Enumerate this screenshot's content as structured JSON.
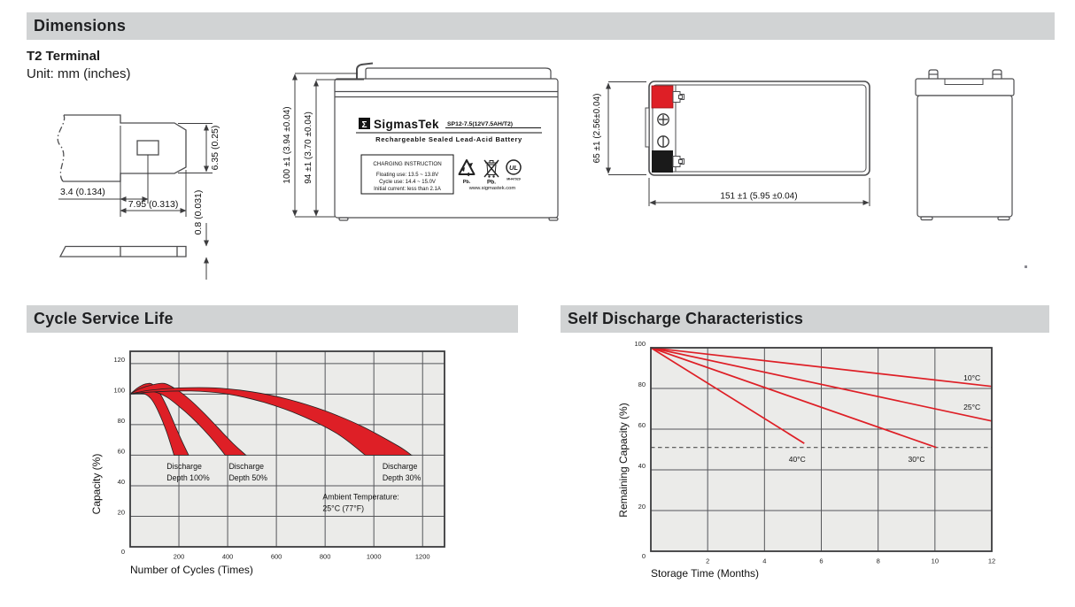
{
  "header": {
    "dimensions_title": "Dimensions",
    "terminal_type": "T2 Terminal",
    "unit_note": "Unit: mm (inches)"
  },
  "section_titles": {
    "cycle": "Cycle Service Life",
    "self_discharge": "Self Discharge Characteristics"
  },
  "terminal_drawing": {
    "dim_offset": "3.4 (0.134)",
    "dim_length": "7.95 (0.313)",
    "dim_height": "6.35 (0.25)",
    "dim_thickness": "0.8 (0.031)"
  },
  "front_view": {
    "dim_total_height": "100 ±1 (3.94 ±0.04)",
    "dim_case_height": "94 ±1 (3.70 ±0.04)",
    "logo_sigma": "Σ",
    "brand": "SigmasTek",
    "model": "SP12-7.5(12V7.5AH/T2)",
    "subtitle": "Rechargeable Sealed Lead-Acid Battery",
    "charging": {
      "title": "CHARGING INSTRUCTION",
      "floating": "Floating use: 13.5 ~ 13.8V",
      "cycle": "Cycle use: 14.4 ~ 15.0V",
      "initial": "Initial current: less than 2.1A"
    },
    "pb_recycle": "Pb.",
    "pb_bin": "Pb.",
    "ul_text": "UL",
    "ul_code": "MH47929",
    "website": "www.sigmastek.com"
  },
  "top_view": {
    "dim_height": "65 ±1 (2.56±0.04)",
    "dim_length": "151 ±1 (5.95 ±0.04)"
  },
  "colors": {
    "accent_red": "#de1f26",
    "terminal_black": "#1a1a1a",
    "header_bar": "#d1d3d4",
    "plot_bg": "#ebebe9",
    "grid": "#55565a",
    "border": "#3a3b3d",
    "line_art": "#4d4d4f"
  },
  "chart_data": [
    {
      "type": "area",
      "title": "Cycle Service Life",
      "xlabel": "Number of Cycles (Times)",
      "ylabel": "Capacity (%)",
      "xlim": [
        0,
        1290
      ],
      "ylim": [
        0,
        128
      ],
      "xticks": [
        200,
        400,
        600,
        800,
        1000,
        1200
      ],
      "yticks": [
        0,
        20,
        40,
        60,
        80,
        100,
        120
      ],
      "grid": true,
      "legend_position": "none",
      "bands": [
        {
          "name": "Discharge Depth 100%",
          "upper": [
            [
              0,
              100
            ],
            [
              30,
              104
            ],
            [
              60,
              106.5
            ],
            [
              90,
              106.5
            ],
            [
              120,
              101
            ],
            [
              150,
              92
            ],
            [
              180,
              81
            ],
            [
              210,
              70
            ],
            [
              240,
              60
            ]
          ],
          "lower": [
            [
              0,
              100
            ],
            [
              30,
              100.5
            ],
            [
              60,
              100
            ],
            [
              90,
              96
            ],
            [
              120,
              87
            ],
            [
              150,
              75
            ],
            [
              180,
              60
            ]
          ]
        },
        {
          "name": "Discharge Depth 50%",
          "upper": [
            [
              0,
              100
            ],
            [
              40,
              103.5
            ],
            [
              90,
              106
            ],
            [
              140,
              107
            ],
            [
              190,
              103
            ],
            [
              240,
              97
            ],
            [
              300,
              88
            ],
            [
              360,
              78
            ],
            [
              420,
              68
            ],
            [
              475,
              60
            ]
          ],
          "lower": [
            [
              0,
              100
            ],
            [
              50,
              101.5
            ],
            [
              100,
              101.5
            ],
            [
              150,
              98
            ],
            [
              200,
              92
            ],
            [
              250,
              85
            ],
            [
              300,
              77
            ],
            [
              350,
              68
            ],
            [
              390,
              60
            ]
          ]
        },
        {
          "name": "Discharge Depth 30%",
          "upper": [
            [
              0,
              100
            ],
            [
              80,
              102.5
            ],
            [
              200,
              104
            ],
            [
              350,
              104
            ],
            [
              500,
              101.5
            ],
            [
              650,
              96.5
            ],
            [
              800,
              89
            ],
            [
              950,
              79
            ],
            [
              1100,
              66
            ],
            [
              1155,
              60
            ]
          ],
          "lower": [
            [
              0,
              100
            ],
            [
              100,
              101.5
            ],
            [
              250,
              102
            ],
            [
              400,
              100
            ],
            [
              550,
              94.5
            ],
            [
              700,
              86
            ],
            [
              850,
              74
            ],
            [
              965,
              60
            ]
          ]
        }
      ],
      "annotations": [
        {
          "lines": [
            "Discharge",
            "Depth 100%"
          ],
          "x": 150,
          "y": 51
        },
        {
          "lines": [
            "Discharge",
            "Depth 50%"
          ],
          "x": 405,
          "y": 51
        },
        {
          "lines": [
            "Discharge",
            "Depth 30%"
          ],
          "x": 1035,
          "y": 51
        },
        {
          "lines": [
            "Ambient Temperature:",
            "25°C (77°F)"
          ],
          "x": 790,
          "y": 31
        }
      ]
    },
    {
      "type": "line",
      "title": "Self Discharge Characteristics",
      "xlabel": "Storage Time (Months)",
      "ylabel": "Remaining Capacity (%)",
      "xlim": [
        0,
        12
      ],
      "ylim": [
        0,
        100
      ],
      "xticks": [
        2,
        4,
        6,
        8,
        10,
        12
      ],
      "yticks": [
        0,
        20,
        40,
        60,
        80,
        100
      ],
      "grid": true,
      "dashed_line_y": 51,
      "series": [
        {
          "name": "10°C",
          "points": [
            [
              0,
              100
            ],
            [
              12,
              81
            ]
          ],
          "label": {
            "x": 11.6,
            "y": 84,
            "anchor": "end"
          }
        },
        {
          "name": "25°C",
          "points": [
            [
              0,
              100
            ],
            [
              12,
              64
            ]
          ],
          "label": {
            "x": 11.6,
            "y": 69.5,
            "anchor": "end"
          }
        },
        {
          "name": "30°C",
          "points": [
            [
              0,
              100
            ],
            [
              10.05,
              51
            ]
          ],
          "label": {
            "x": 9.35,
            "y": 44,
            "anchor": "middle"
          }
        },
        {
          "name": "40°C",
          "points": [
            [
              0,
              100
            ],
            [
              5.4,
              53
            ]
          ],
          "label": {
            "x": 5.15,
            "y": 44,
            "anchor": "middle"
          }
        }
      ]
    }
  ]
}
